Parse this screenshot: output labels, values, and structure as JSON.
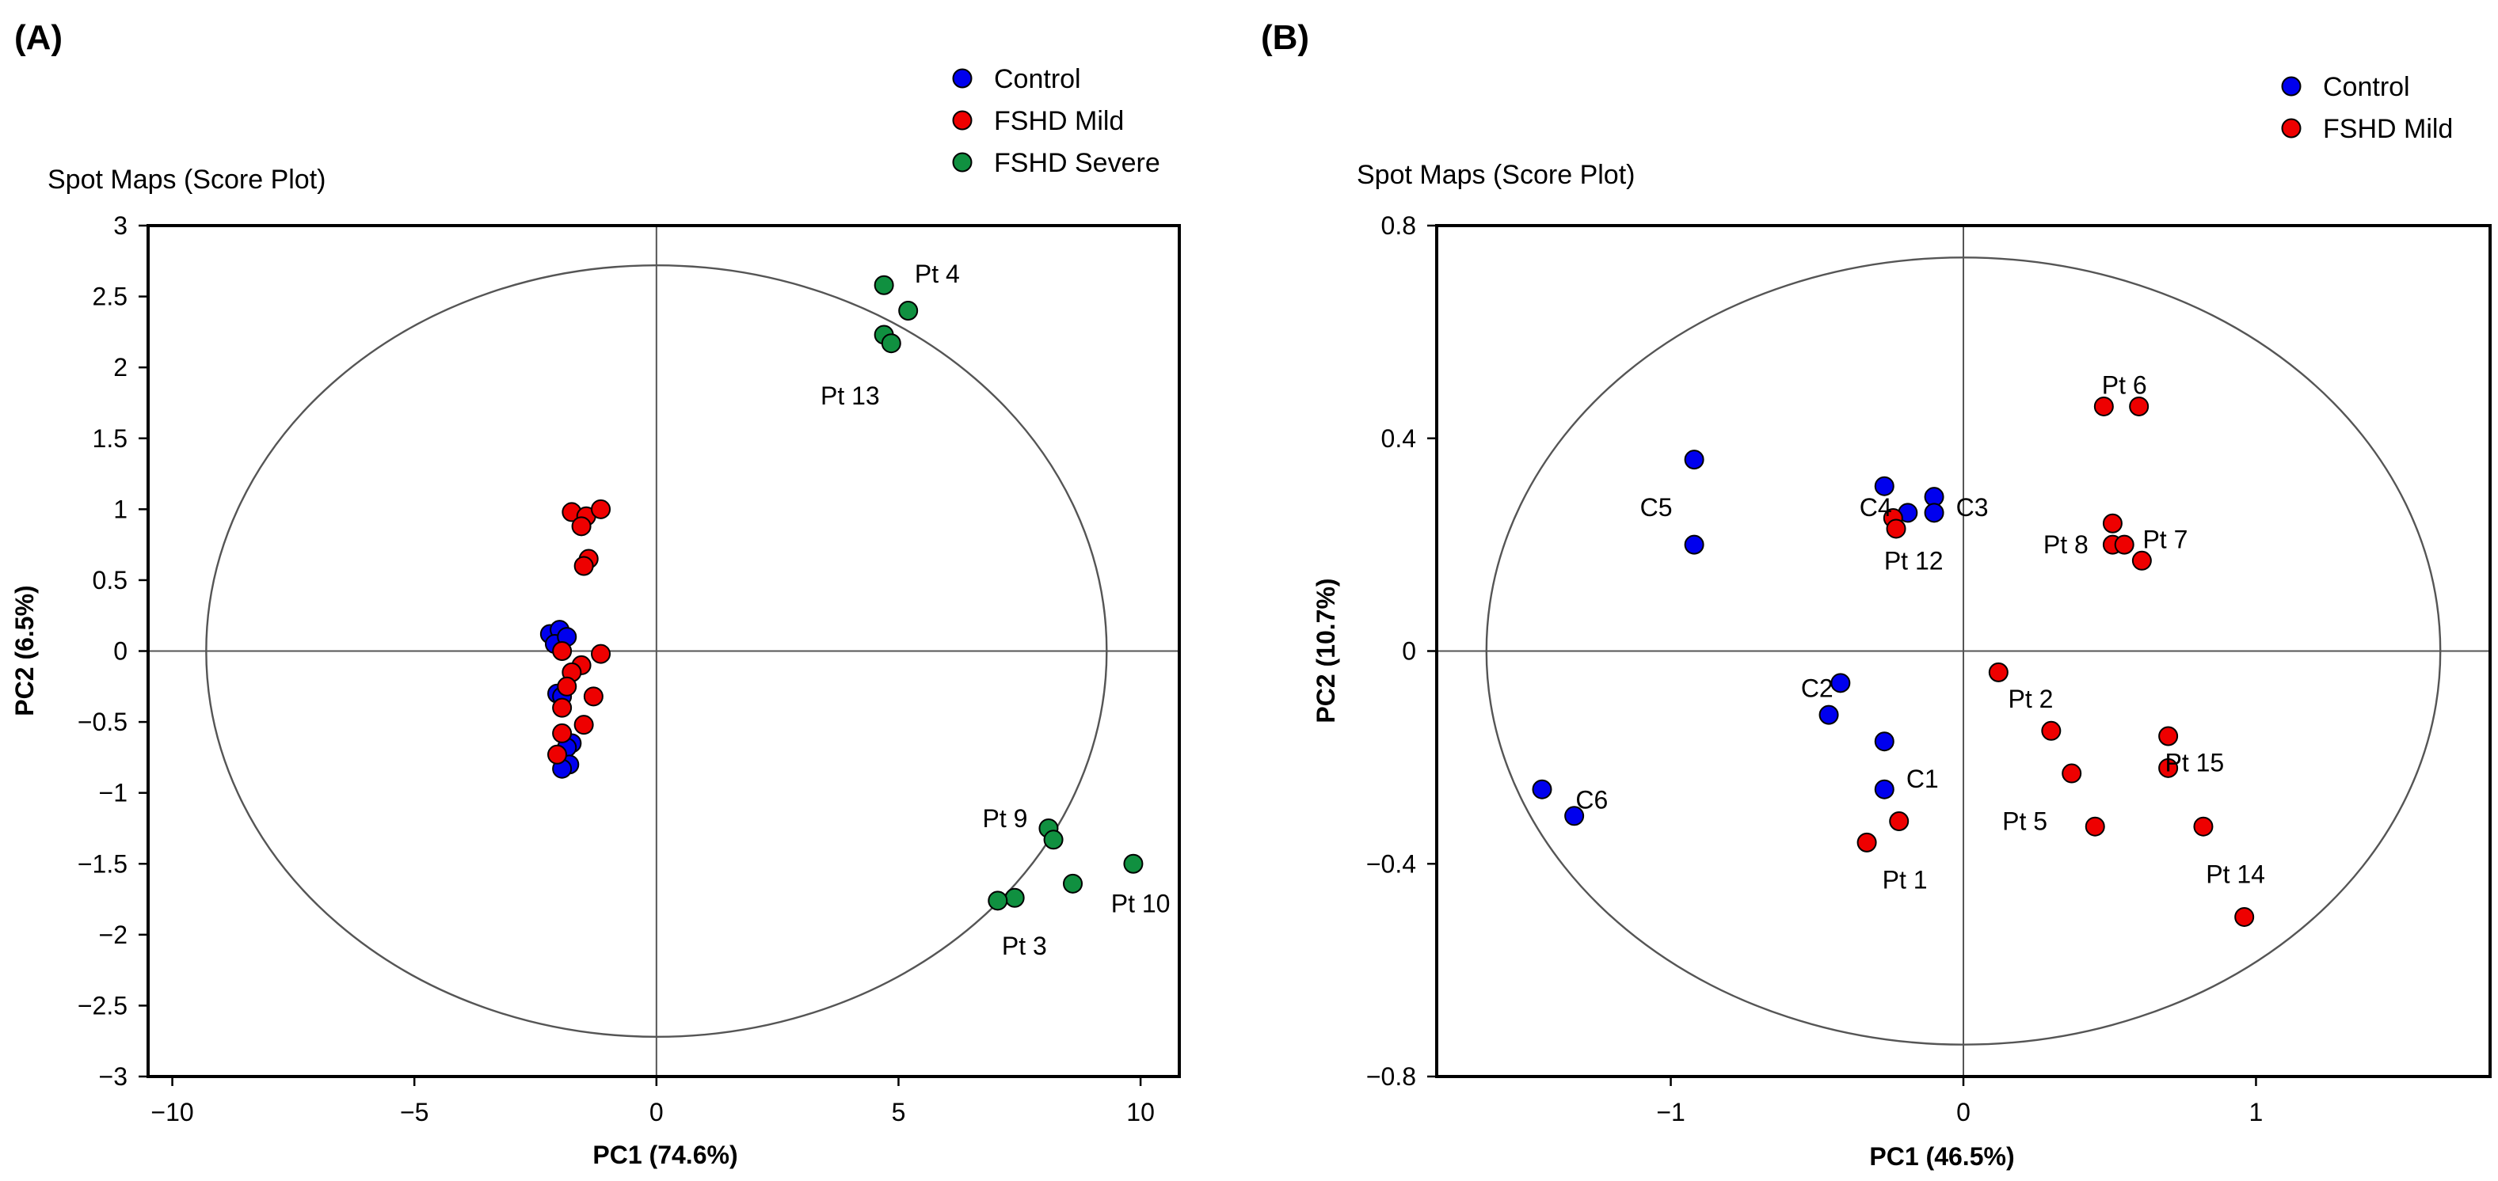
{
  "chart_data": [
    {
      "type": "scatter",
      "panel_label": "(A)",
      "title": "Spot Maps (Score Plot)",
      "xlabel": "PC1 (74.6%)",
      "ylabel": "PC2 (6.5%)",
      "xlim": [
        -10.5,
        10.8
      ],
      "ylim": [
        -3,
        3
      ],
      "xticks": [
        -10,
        -5,
        0,
        5,
        10
      ],
      "xtick_labels": [
        "−10",
        "−5",
        "0",
        "5",
        "10"
      ],
      "yticks": [
        3,
        2.5,
        2,
        1.5,
        1,
        0.5,
        0,
        -0.5,
        -1,
        -1.5,
        -2,
        -2.5,
        -3
      ],
      "ytick_labels": [
        "3",
        "2.5",
        "2",
        "1.5",
        "1",
        "0.5",
        "0",
        "−0.5",
        "−1",
        "−1.5",
        "−2",
        "−2.5",
        "−3"
      ],
      "reference_lines": {
        "x": 0,
        "y": 0
      },
      "ellipse": {
        "rx": 9.3,
        "ry": 2.72
      },
      "legend_position": "top-right",
      "series": [
        {
          "name": "Control",
          "color": "#0000ee",
          "points": [
            [
              -2.2,
              0.12
            ],
            [
              -2.0,
              0.15
            ],
            [
              -2.1,
              0.05
            ],
            [
              -1.85,
              0.1
            ],
            [
              -2.05,
              -0.3
            ],
            [
              -1.95,
              -0.32
            ],
            [
              -1.75,
              -0.65
            ],
            [
              -1.85,
              -0.68
            ],
            [
              -1.8,
              -0.8
            ],
            [
              -1.95,
              -0.83
            ]
          ]
        },
        {
          "name": "FSHD Mild",
          "color": "#ee0000",
          "points": [
            [
              -1.75,
              0.98
            ],
            [
              -1.45,
              0.95
            ],
            [
              -1.15,
              1.0
            ],
            [
              -1.55,
              0.88
            ],
            [
              -1.4,
              0.65
            ],
            [
              -1.5,
              0.6
            ],
            [
              -1.95,
              0.0
            ],
            [
              -1.15,
              -0.02
            ],
            [
              -1.55,
              -0.1
            ],
            [
              -1.75,
              -0.15
            ],
            [
              -1.85,
              -0.25
            ],
            [
              -1.3,
              -0.32
            ],
            [
              -1.95,
              -0.4
            ],
            [
              -1.5,
              -0.52
            ],
            [
              -1.95,
              -0.58
            ],
            [
              -2.05,
              -0.73
            ]
          ]
        },
        {
          "name": "FSHD Severe",
          "color": "#109040",
          "points": [
            [
              4.7,
              2.58
            ],
            [
              5.2,
              2.4
            ],
            [
              4.7,
              2.23
            ],
            [
              4.85,
              2.17
            ],
            [
              8.1,
              -1.25
            ],
            [
              8.2,
              -1.33
            ],
            [
              9.85,
              -1.5
            ],
            [
              8.6,
              -1.64
            ],
            [
              7.4,
              -1.74
            ],
            [
              7.05,
              -1.76
            ]
          ]
        }
      ],
      "annotations": [
        {
          "text": "Pt 4",
          "x": 5.8,
          "y": 2.66
        },
        {
          "text": "Pt 13",
          "x": 4.0,
          "y": 1.8
        },
        {
          "text": "Pt 9",
          "x": 7.2,
          "y": -1.18
        },
        {
          "text": "Pt 10",
          "x": 10.0,
          "y": -1.78
        },
        {
          "text": "Pt 3",
          "x": 7.6,
          "y": -2.08
        }
      ]
    },
    {
      "type": "scatter",
      "panel_label": "(B)",
      "title": "Spot Maps (Score Plot)",
      "xlabel": "PC1 (46.5%)",
      "ylabel": "PC2 (10.7%)",
      "xlim": [
        -1.8,
        1.8
      ],
      "ylim": [
        -0.8,
        0.8
      ],
      "xticks": [
        -1,
        0,
        1
      ],
      "xtick_labels": [
        "−1",
        "0",
        "1"
      ],
      "yticks": [
        0.8,
        0.4,
        0,
        -0.4,
        -0.8
      ],
      "ytick_labels": [
        "0.8",
        "0.4",
        "0",
        "−0.4",
        "−0.8"
      ],
      "reference_lines": {
        "x": 0,
        "y": 0
      },
      "ellipse": {
        "rx": 1.63,
        "ry": 0.74
      },
      "legend_position": "top-right",
      "series": [
        {
          "name": "Control",
          "color": "#0000ee",
          "points": [
            [
              -0.92,
              0.36
            ],
            [
              -0.92,
              0.2
            ],
            [
              -0.27,
              0.31
            ],
            [
              -0.19,
              0.26
            ],
            [
              -0.1,
              0.29
            ],
            [
              -0.1,
              0.26
            ],
            [
              -0.42,
              -0.06
            ],
            [
              -0.46,
              -0.12
            ],
            [
              -0.27,
              -0.17
            ],
            [
              -0.27,
              -0.26
            ],
            [
              -1.44,
              -0.26
            ],
            [
              -1.33,
              -0.31
            ]
          ]
        },
        {
          "name": "FSHD Mild",
          "color": "#ee0000",
          "points": [
            [
              0.48,
              0.46
            ],
            [
              0.6,
              0.46
            ],
            [
              0.51,
              0.24
            ],
            [
              0.51,
              0.2
            ],
            [
              0.55,
              0.2
            ],
            [
              0.61,
              0.17
            ],
            [
              -0.24,
              0.25
            ],
            [
              -0.23,
              0.23
            ],
            [
              0.12,
              -0.04
            ],
            [
              0.3,
              -0.15
            ],
            [
              0.37,
              -0.23
            ],
            [
              0.45,
              -0.33
            ],
            [
              0.7,
              -0.16
            ],
            [
              0.7,
              -0.22
            ],
            [
              0.82,
              -0.33
            ],
            [
              0.96,
              -0.5
            ],
            [
              -0.22,
              -0.32
            ],
            [
              -0.33,
              -0.36
            ]
          ]
        }
      ],
      "annotations": [
        {
          "text": "Pt 6",
          "x": 0.55,
          "y": 0.5
        },
        {
          "text": "C5",
          "x": -1.05,
          "y": 0.27
        },
        {
          "text": "C4",
          "x": -0.3,
          "y": 0.27
        },
        {
          "text": "C3",
          "x": 0.03,
          "y": 0.27
        },
        {
          "text": "Pt 12",
          "x": -0.17,
          "y": 0.17
        },
        {
          "text": "Pt 8",
          "x": 0.35,
          "y": 0.2
        },
        {
          "text": "Pt 7",
          "x": 0.69,
          "y": 0.21
        },
        {
          "text": "C2",
          "x": -0.5,
          "y": -0.07
        },
        {
          "text": "Pt 2",
          "x": 0.23,
          "y": -0.09
        },
        {
          "text": "Pt 15",
          "x": 0.79,
          "y": -0.21
        },
        {
          "text": "C6",
          "x": -1.27,
          "y": -0.28
        },
        {
          "text": "C1",
          "x": -0.14,
          "y": -0.24
        },
        {
          "text": "Pt 5",
          "x": 0.21,
          "y": -0.32
        },
        {
          "text": "Pt 1",
          "x": -0.2,
          "y": -0.43
        },
        {
          "text": "Pt 14",
          "x": 0.93,
          "y": -0.42
        }
      ]
    }
  ]
}
